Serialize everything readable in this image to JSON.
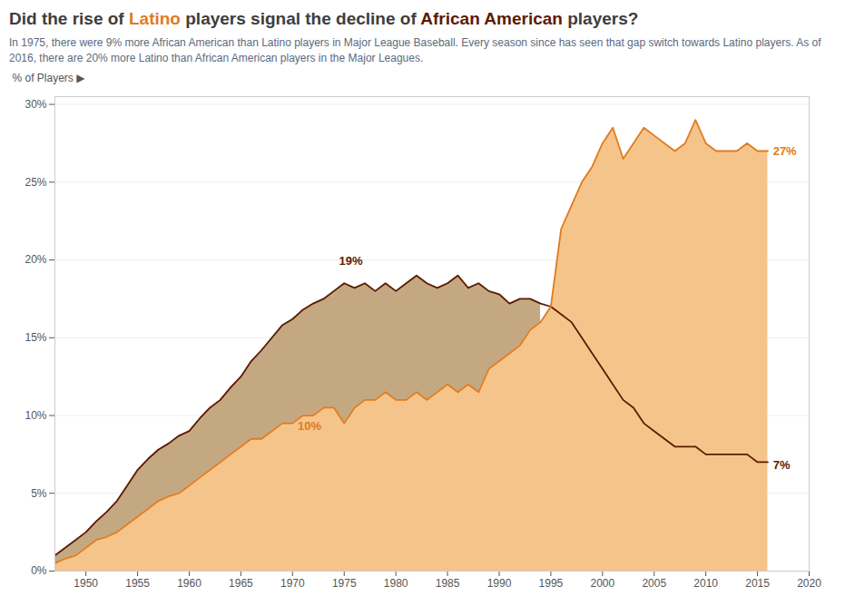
{
  "chart_data": {
    "type": "area",
    "title": "Did the rise of Latino players signal the decline of African American players?",
    "subtitle": "In 1975, there were 9% more African American than Latino players in Major League Baseball. Every season since has seen that gap switch towards Latino players. As of 2016, there are 20% more Latino than African American players in the Major Leagues.",
    "ylabel": "% of Players ▶",
    "x": [
      1947,
      1948,
      1949,
      1950,
      1951,
      1952,
      1953,
      1954,
      1955,
      1956,
      1957,
      1958,
      1959,
      1960,
      1961,
      1962,
      1963,
      1964,
      1965,
      1966,
      1967,
      1968,
      1969,
      1970,
      1971,
      1972,
      1973,
      1974,
      1975,
      1976,
      1977,
      1978,
      1979,
      1980,
      1981,
      1982,
      1983,
      1984,
      1985,
      1986,
      1987,
      1988,
      1989,
      1990,
      1991,
      1992,
      1993,
      1994,
      1995,
      1996,
      1997,
      1998,
      1999,
      2000,
      2001,
      2002,
      2003,
      2004,
      2005,
      2006,
      2007,
      2008,
      2009,
      2010,
      2011,
      2012,
      2013,
      2014,
      2015,
      2016
    ],
    "series": [
      {
        "name": "African American",
        "color": "#5c1a00",
        "fill_color": "#c4a882",
        "values": [
          1.0,
          1.5,
          2.0,
          2.5,
          3.2,
          3.8,
          4.5,
          5.5,
          6.5,
          7.2,
          7.8,
          8.2,
          8.7,
          9.0,
          9.8,
          10.5,
          11.0,
          11.8,
          12.5,
          13.5,
          14.2,
          15.0,
          15.8,
          16.2,
          16.8,
          17.2,
          17.5,
          18.0,
          18.5,
          18.2,
          18.5,
          18.0,
          18.5,
          18.0,
          18.5,
          19.0,
          18.5,
          18.2,
          18.5,
          19.0,
          18.2,
          18.5,
          18.0,
          17.8,
          17.2,
          17.5,
          17.5,
          17.2,
          17.0,
          16.5,
          16.0,
          15.0,
          14.0,
          13.0,
          12.0,
          11.0,
          10.5,
          9.5,
          9.0,
          8.5,
          8.0,
          8.0,
          8.0,
          7.5,
          7.5,
          7.5,
          7.5,
          7.5,
          7.0,
          7.0
        ]
      },
      {
        "name": "Latino",
        "color": "#e07b20",
        "fill_color": "#f5c48a",
        "values": [
          0.5,
          0.8,
          1.0,
          1.5,
          2.0,
          2.2,
          2.5,
          3.0,
          3.5,
          4.0,
          4.5,
          4.8,
          5.0,
          5.5,
          6.0,
          6.5,
          7.0,
          7.5,
          8.0,
          8.5,
          8.5,
          9.0,
          9.5,
          9.5,
          10.0,
          10.0,
          10.5,
          10.5,
          9.5,
          10.5,
          11.0,
          11.0,
          11.5,
          11.0,
          11.0,
          11.5,
          11.0,
          11.5,
          12.0,
          11.5,
          12.0,
          11.5,
          13.0,
          13.5,
          14.0,
          14.5,
          15.5,
          16.0,
          17.0,
          22.0,
          23.5,
          25.0,
          26.0,
          27.5,
          28.5,
          26.5,
          27.5,
          28.5,
          28.0,
          27.5,
          27.0,
          27.5,
          29.0,
          27.5,
          27.0,
          27.0,
          27.0,
          27.5,
          27.0,
          27.0
        ]
      }
    ],
    "xlim": [
      1947,
      2020
    ],
    "xticks": [
      1950,
      1955,
      1960,
      1965,
      1970,
      1975,
      1980,
      1985,
      1990,
      1995,
      2000,
      2005,
      2010,
      2015,
      2020
    ],
    "ylim": [
      0,
      30.5
    ],
    "yticks": [
      {
        "value": 0,
        "label": "0%"
      },
      {
        "value": 5,
        "label": "5%"
      },
      {
        "value": 10,
        "label": "10%"
      },
      {
        "value": 15,
        "label": "15%"
      },
      {
        "value": 20,
        "label": "20%"
      },
      {
        "value": 25,
        "label": "25%"
      },
      {
        "value": 30,
        "label": "30%"
      }
    ],
    "grid": "y",
    "annotations": [
      {
        "text": "19%",
        "x": 1974.5,
        "y": 19.7,
        "color": "#5c1a00"
      },
      {
        "text": "10%",
        "x": 1970.5,
        "y": 9.6,
        "color": "#e07b20"
      },
      {
        "text": "27%",
        "x": 2016.5,
        "y": 27.0,
        "color": "#e07b20"
      },
      {
        "text": "7%",
        "x": 2016.5,
        "y": 6.8,
        "color": "#5c1a00"
      }
    ]
  }
}
